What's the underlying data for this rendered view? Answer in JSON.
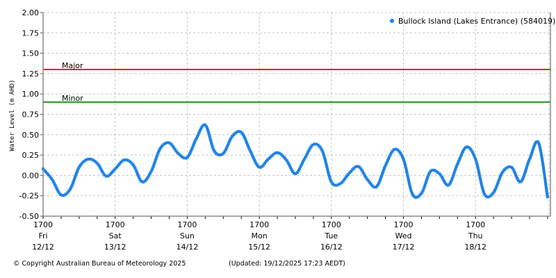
{
  "chart_data": {
    "type": "scatter",
    "title": "",
    "xlabel": "",
    "ylabel": "Water Level (m AHD)",
    "ylim": [
      -0.5,
      2.0
    ],
    "yticks": [
      "-0.50",
      "-0.25",
      "0.00",
      "0.25",
      "0.50",
      "0.75",
      "1.00",
      "1.25",
      "1.50",
      "1.75",
      "2.00"
    ],
    "grid": true,
    "legend_position": "top-right",
    "x_tick_labels": [
      {
        "time": "1700",
        "day": "Fri",
        "date": "12/12"
      },
      {
        "time": "1700",
        "day": "Sat",
        "date": "13/12"
      },
      {
        "time": "1700",
        "day": "Sun",
        "date": "14/12"
      },
      {
        "time": "1700",
        "day": "Mon",
        "date": "15/12"
      },
      {
        "time": "1700",
        "day": "Tue",
        "date": "16/12"
      },
      {
        "time": "1700",
        "day": "Wed",
        "date": "17/12"
      },
      {
        "time": "1700",
        "day": "Thu",
        "date": "18/12"
      }
    ],
    "x_unit": "hours since 1700 Fri 12/12",
    "x_range_hours": [
      0,
      169
    ],
    "thresholds": [
      {
        "name": "Major",
        "value": 1.3,
        "color": "#e8201c"
      },
      {
        "name": "Minor",
        "value": 0.9,
        "color": "#1e9a16"
      }
    ],
    "series": [
      {
        "name": "Bullock Island (Lakes Entrance) (584019)",
        "color": "#1e82e6",
        "x": [
          0,
          3,
          6,
          9,
          12,
          15,
          18,
          21,
          24,
          27,
          30,
          33,
          36,
          39,
          42,
          45,
          48,
          51,
          54,
          57,
          60,
          63,
          66,
          69,
          72,
          75,
          78,
          81,
          84,
          87,
          90,
          93,
          96,
          99,
          102,
          105,
          108,
          111,
          114,
          117,
          120,
          123,
          126,
          129,
          132,
          135,
          138,
          141,
          144,
          147,
          150,
          153,
          156,
          159,
          162,
          165,
          168
        ],
        "values": [
          0.08,
          -0.05,
          -0.24,
          -0.17,
          0.1,
          0.2,
          0.15,
          -0.01,
          0.08,
          0.19,
          0.13,
          -0.08,
          0.05,
          0.33,
          0.4,
          0.27,
          0.22,
          0.45,
          0.62,
          0.3,
          0.27,
          0.48,
          0.53,
          0.3,
          0.1,
          0.2,
          0.28,
          0.19,
          0.02,
          0.2,
          0.38,
          0.3,
          -0.08,
          -0.1,
          0.03,
          0.11,
          -0.05,
          -0.14,
          0.12,
          0.32,
          0.2,
          -0.23,
          -0.22,
          0.05,
          0.02,
          -0.12,
          0.14,
          0.35,
          0.2,
          -0.23,
          -0.21,
          0.04,
          0.1,
          -0.08,
          0.2,
          0.4,
          -0.27
        ]
      }
    ]
  },
  "legend": {
    "series_label": "Bullock Island (Lakes Entrance) (584019)"
  },
  "axis": {
    "ylabel": "Water Level (m AHD)"
  },
  "thresholds": {
    "major_label": "Major",
    "minor_label": "Minor"
  },
  "footer": {
    "copyright": "© Copyright Australian Bureau of Meteorology 2025",
    "updated": "(Updated: 19/12/2025 17:23 AEDT)"
  }
}
